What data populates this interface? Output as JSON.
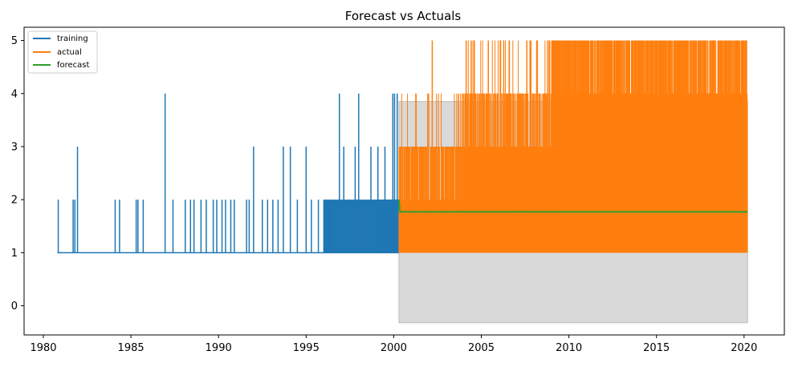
{
  "chart_data": {
    "type": "line",
    "title": "Forecast vs Actuals",
    "xlabel": "",
    "ylabel": "",
    "xlim": [
      1978.9,
      2022.3
    ],
    "ylim": [
      -0.55,
      5.25
    ],
    "x_ticks": [
      1980,
      1985,
      1990,
      1995,
      2000,
      2005,
      2010,
      2015,
      2020
    ],
    "x_tick_labels": [
      "1980",
      "1985",
      "1990",
      "1995",
      "2000",
      "2005",
      "2010",
      "2015",
      "2020"
    ],
    "y_ticks": [
      0,
      1,
      2,
      3,
      4,
      5
    ],
    "y_tick_labels": [
      "0",
      "1",
      "2",
      "3",
      "4",
      "5"
    ],
    "grid": false,
    "legend_position": "top-left",
    "colors": {
      "training": "#1f77b4",
      "actual": "#ff7f0e",
      "forecast": "#2ca02c",
      "confidence_band": "#d9d9d9"
    },
    "series": [
      {
        "name": "training",
        "x_range": [
          1980.8,
          2000.3
        ],
        "baseline": 1,
        "spikes": [
          {
            "x": 1980.85,
            "y": 2
          },
          {
            "x": 1981.7,
            "y": 2
          },
          {
            "x": 1981.8,
            "y": 2
          },
          {
            "x": 1981.95,
            "y": 3
          },
          {
            "x": 1984.1,
            "y": 2
          },
          {
            "x": 1984.35,
            "y": 2
          },
          {
            "x": 1985.3,
            "y": 2
          },
          {
            "x": 1985.4,
            "y": 2
          },
          {
            "x": 1985.7,
            "y": 2
          },
          {
            "x": 1986.95,
            "y": 4
          },
          {
            "x": 1987.4,
            "y": 2
          },
          {
            "x": 1988.1,
            "y": 2
          },
          {
            "x": 1988.4,
            "y": 2
          },
          {
            "x": 1988.6,
            "y": 2
          },
          {
            "x": 1989.0,
            "y": 2
          },
          {
            "x": 1989.3,
            "y": 2
          },
          {
            "x": 1989.7,
            "y": 2
          },
          {
            "x": 1989.9,
            "y": 2
          },
          {
            "x": 1990.2,
            "y": 2
          },
          {
            "x": 1990.4,
            "y": 2
          },
          {
            "x": 1990.7,
            "y": 2
          },
          {
            "x": 1990.9,
            "y": 2
          },
          {
            "x": 1991.6,
            "y": 2
          },
          {
            "x": 1991.75,
            "y": 2
          },
          {
            "x": 1992.0,
            "y": 3
          },
          {
            "x": 1992.5,
            "y": 2
          },
          {
            "x": 1992.8,
            "y": 2
          },
          {
            "x": 1993.1,
            "y": 2
          },
          {
            "x": 1993.4,
            "y": 2
          },
          {
            "x": 1993.7,
            "y": 3
          },
          {
            "x": 1994.1,
            "y": 3
          },
          {
            "x": 1994.5,
            "y": 2
          },
          {
            "x": 1995.0,
            "y": 3
          },
          {
            "x": 1995.3,
            "y": 2
          },
          {
            "x": 1995.7,
            "y": 2
          },
          {
            "x": 1996.9,
            "y": 4
          },
          {
            "x": 1997.15,
            "y": 3
          },
          {
            "x": 1997.8,
            "y": 3
          },
          {
            "x": 1998.0,
            "y": 4
          },
          {
            "x": 1998.7,
            "y": 3
          },
          {
            "x": 1999.1,
            "y": 3
          },
          {
            "x": 1999.5,
            "y": 3
          },
          {
            "x": 1999.95,
            "y": 4
          },
          {
            "x": 2000.05,
            "y": 4
          },
          {
            "x": 2000.2,
            "y": 4
          }
        ],
        "dense_region": {
          "x_start": 1996.0,
          "x_end": 2000.3,
          "min": 1,
          "max": 2,
          "solid_from": 1998.9
        }
      },
      {
        "name": "actual",
        "x_range": [
          2000.3,
          2020.2
        ],
        "baseline": 1,
        "dense_min": 1,
        "dense_max": 5,
        "solid_fill": [
          1,
          2
        ],
        "spikes": [
          {
            "x": 2000.6,
            "y": 3
          },
          {
            "x": 2001.2,
            "y": 3
          },
          {
            "x": 2001.6,
            "y": 3
          },
          {
            "x": 2002.2,
            "y": 5
          },
          {
            "x": 2003.3,
            "y": 3
          },
          {
            "x": 2003.7,
            "y": 4
          },
          {
            "x": 2004.4,
            "y": 4
          },
          {
            "x": 2004.6,
            "y": 5
          },
          {
            "x": 2005.4,
            "y": 5
          },
          {
            "x": 2006.1,
            "y": 5
          },
          {
            "x": 2006.6,
            "y": 5
          },
          {
            "x": 2007.6,
            "y": 5
          },
          {
            "x": 2008.2,
            "y": 5
          },
          {
            "x": 2008.9,
            "y": 5
          },
          {
            "x": 2009.7,
            "y": 5
          }
        ]
      },
      {
        "name": "forecast",
        "x": [
          2000.3,
          2000.35,
          2020.2
        ],
        "y": [
          2.0,
          1.77,
          1.77
        ]
      }
    ],
    "confidence_band": {
      "x_start": 2000.3,
      "x_end": 2020.2,
      "lower": -0.32,
      "upper": 3.85
    }
  }
}
